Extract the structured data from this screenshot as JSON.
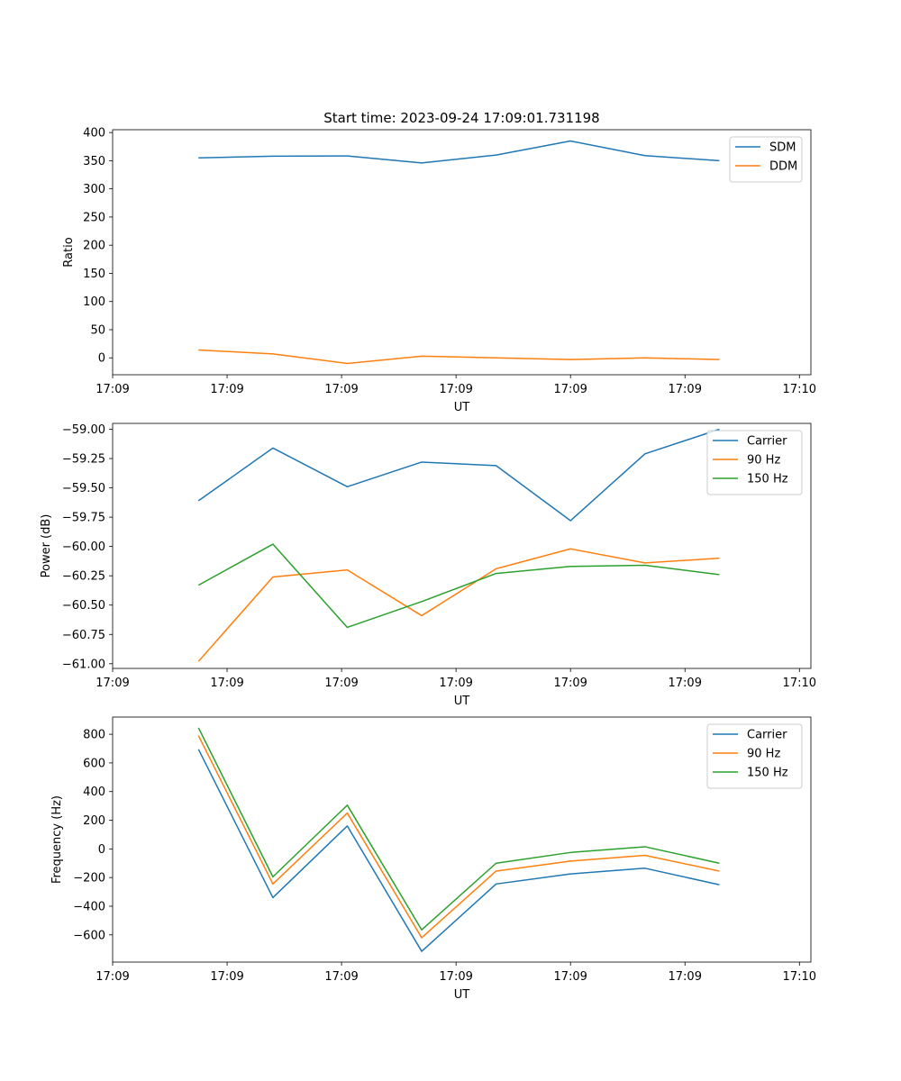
{
  "figure_title": "Start time: 2023-09-24 17:09:01.731198",
  "colors": {
    "blue": "#1f77b4",
    "orange": "#ff7f0e",
    "green": "#2ca02c"
  },
  "chart_data": [
    {
      "type": "line",
      "title": "Start time: 2023-09-24 17:09:01.731198",
      "xlabel": "UT",
      "ylabel": "Ratio",
      "x": [
        0.75,
        1.4,
        2.05,
        2.7,
        3.35,
        4.0,
        4.65,
        5.3
      ],
      "xlim": [
        0,
        6.1
      ],
      "ylim": [
        -30,
        405
      ],
      "x_ticks": [
        {
          "value": 0,
          "label": "17:09"
        },
        {
          "value": 1,
          "label": "17:09"
        },
        {
          "value": 2,
          "label": "17:09"
        },
        {
          "value": 3,
          "label": "17:09"
        },
        {
          "value": 4,
          "label": "17:09"
        },
        {
          "value": 5,
          "label": "17:09"
        },
        {
          "value": 6,
          "label": "17:10"
        }
      ],
      "y_ticks": [
        {
          "value": 400,
          "label": "400"
        },
        {
          "value": 350,
          "label": "350"
        },
        {
          "value": 300,
          "label": "300"
        },
        {
          "value": 250,
          "label": "250"
        },
        {
          "value": 200,
          "label": "200"
        },
        {
          "value": 150,
          "label": "150"
        },
        {
          "value": 100,
          "label": "100"
        },
        {
          "value": 50,
          "label": "50"
        },
        {
          "value": 0,
          "label": "0"
        }
      ],
      "legend": "top-right",
      "series": [
        {
          "name": "SDM",
          "color": "#1f77b4",
          "values": [
            355,
            358,
            358.5,
            346,
            360,
            385,
            359,
            350
          ]
        },
        {
          "name": "DDM",
          "color": "#ff7f0e",
          "values": [
            14,
            7,
            -10,
            3,
            0,
            -3,
            0,
            -3
          ]
        }
      ]
    },
    {
      "type": "line",
      "title": "",
      "xlabel": "UT",
      "ylabel": "Power (dB)",
      "x": [
        0.75,
        1.4,
        2.05,
        2.7,
        3.35,
        4.0,
        4.65,
        5.3
      ],
      "xlim": [
        0,
        6.1
      ],
      "ylim": [
        -61.04,
        -58.95
      ],
      "x_ticks": [
        {
          "value": 0,
          "label": "17:09"
        },
        {
          "value": 1,
          "label": "17:09"
        },
        {
          "value": 2,
          "label": "17:09"
        },
        {
          "value": 3,
          "label": "17:09"
        },
        {
          "value": 4,
          "label": "17:09"
        },
        {
          "value": 5,
          "label": "17:09"
        },
        {
          "value": 6,
          "label": "17:10"
        }
      ],
      "y_ticks": [
        {
          "value": -59.0,
          "label": "−59.00"
        },
        {
          "value": -59.25,
          "label": "−59.25"
        },
        {
          "value": -59.5,
          "label": "−59.50"
        },
        {
          "value": -59.75,
          "label": "−59.75"
        },
        {
          "value": -60.0,
          "label": "−60.00"
        },
        {
          "value": -60.25,
          "label": "−60.25"
        },
        {
          "value": -60.5,
          "label": "−60.50"
        },
        {
          "value": -60.75,
          "label": "−60.75"
        },
        {
          "value": -61.0,
          "label": "−61.00"
        }
      ],
      "legend": "top-right",
      "series": [
        {
          "name": "Carrier",
          "color": "#1f77b4",
          "values": [
            -59.61,
            -59.16,
            -59.49,
            -59.28,
            -59.31,
            -59.78,
            -59.21,
            -59.0
          ]
        },
        {
          "name": "90 Hz",
          "color": "#ff7f0e",
          "values": [
            -60.98,
            -60.26,
            -60.2,
            -60.59,
            -60.19,
            -60.02,
            -60.14,
            -60.1
          ]
        },
        {
          "name": "150 Hz",
          "color": "#2ca02c",
          "values": [
            -60.33,
            -59.98,
            -60.69,
            -60.47,
            -60.23,
            -60.17,
            -60.16,
            -60.24
          ]
        }
      ]
    },
    {
      "type": "line",
      "title": "",
      "xlabel": "UT",
      "ylabel": "Frequency (Hz)",
      "x": [
        0.75,
        1.4,
        2.05,
        2.7,
        3.35,
        4.0,
        4.65,
        5.3
      ],
      "xlim": [
        0,
        6.1
      ],
      "ylim": [
        -790,
        920
      ],
      "x_ticks": [
        {
          "value": 0,
          "label": "17:09"
        },
        {
          "value": 1,
          "label": "17:09"
        },
        {
          "value": 2,
          "label": "17:09"
        },
        {
          "value": 3,
          "label": "17:09"
        },
        {
          "value": 4,
          "label": "17:09"
        },
        {
          "value": 5,
          "label": "17:09"
        },
        {
          "value": 6,
          "label": "17:10"
        }
      ],
      "y_ticks": [
        {
          "value": 800,
          "label": "800"
        },
        {
          "value": 600,
          "label": "600"
        },
        {
          "value": 400,
          "label": "400"
        },
        {
          "value": 200,
          "label": "200"
        },
        {
          "value": 0,
          "label": "0"
        },
        {
          "value": -200,
          "label": "−200"
        },
        {
          "value": -400,
          "label": "−400"
        },
        {
          "value": -600,
          "label": "−600"
        }
      ],
      "legend": "top-right",
      "series": [
        {
          "name": "Carrier",
          "color": "#1f77b4",
          "values": [
            695,
            -340,
            160,
            -715,
            -245,
            -175,
            -135,
            -250
          ]
        },
        {
          "name": "90 Hz",
          "color": "#ff7f0e",
          "values": [
            790,
            -245,
            250,
            -620,
            -155,
            -85,
            -45,
            -155
          ]
        },
        {
          "name": "150 Hz",
          "color": "#2ca02c",
          "values": [
            845,
            -195,
            305,
            -565,
            -100,
            -25,
            15,
            -100
          ]
        }
      ]
    }
  ]
}
